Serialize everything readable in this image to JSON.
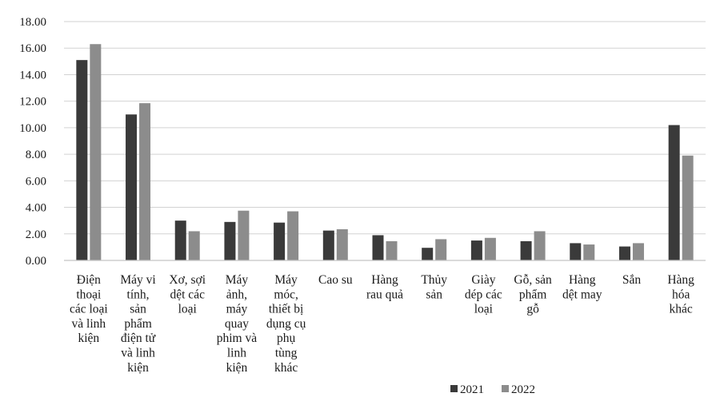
{
  "chart_data": {
    "type": "bar",
    "title": "",
    "xlabel": "",
    "ylabel": "",
    "ylim": [
      0,
      18
    ],
    "yticks": [
      "0.00",
      "2.00",
      "4.00",
      "6.00",
      "8.00",
      "10.00",
      "12.00",
      "14.00",
      "16.00",
      "18.00"
    ],
    "grid": true,
    "legend_position": "bottom-right",
    "categories": [
      [
        "Điện",
        "thoại",
        "các loại",
        "và linh",
        "kiện"
      ],
      [
        "Máy vi",
        "tính,",
        "sản",
        "phẩm",
        "điện tử",
        "và linh",
        "kiện"
      ],
      [
        "Xơ, sợi",
        "dệt các",
        "loại"
      ],
      [
        "Máy",
        "ảnh,",
        "máy",
        "quay",
        "phim và",
        "linh",
        "kiện"
      ],
      [
        "Máy",
        "móc,",
        "thiết bị",
        "dụng cụ",
        "phụ",
        "tùng",
        "khác"
      ],
      [
        "Cao su"
      ],
      [
        "Hàng",
        "rau quả"
      ],
      [
        "Thủy",
        "sản"
      ],
      [
        "Giày",
        "dép các",
        "loại"
      ],
      [
        "Gỗ, sản",
        "phẩm",
        "gỗ"
      ],
      [
        "Hàng",
        "dệt may"
      ],
      [
        "Sắn"
      ],
      [
        "Hàng",
        "hóa",
        "khác"
      ]
    ],
    "series": [
      {
        "name": "2021",
        "color": "#3a3a3a",
        "values": [
          15.1,
          11.0,
          3.0,
          2.9,
          2.85,
          2.25,
          1.9,
          0.95,
          1.5,
          1.45,
          1.3,
          1.05,
          10.2
        ]
      },
      {
        "name": "2022",
        "color": "#8c8c8c",
        "values": [
          16.3,
          11.85,
          2.2,
          3.75,
          3.7,
          2.35,
          1.45,
          1.6,
          1.7,
          2.2,
          1.2,
          1.3,
          7.9
        ]
      }
    ]
  }
}
